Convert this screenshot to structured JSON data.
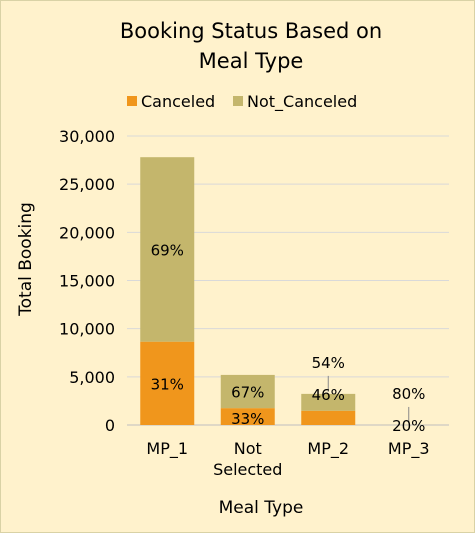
{
  "chart_data": {
    "type": "bar",
    "stacked": true,
    "title": "Booking Status Based on Meal Type",
    "title_lines": [
      "Booking Status Based on",
      "Meal Type"
    ],
    "xlabel": "Meal Type",
    "ylabel": "Total Booking",
    "categories": [
      "MP_1",
      "Not Selected",
      "MP_2",
      "MP_3"
    ],
    "category_lines": [
      [
        "MP_1"
      ],
      [
        "Not",
        "Selected"
      ],
      [
        "MP_2"
      ],
      [
        "MP_3"
      ]
    ],
    "series": [
      {
        "name": "Canceled",
        "color": "#F0961C",
        "values": [
          8650,
          1750,
          1480,
          1
        ],
        "labels": [
          "31%",
          "33%",
          "46%",
          "20%"
        ]
      },
      {
        "name": "Not_Canceled",
        "color": "#C4B66C",
        "values": [
          19150,
          3450,
          1750,
          4
        ],
        "labels": [
          "69%",
          "67%",
          "54%",
          "80%"
        ]
      }
    ],
    "ylim": [
      0,
      30000
    ],
    "yticks": [
      0,
      5000,
      10000,
      15000,
      20000,
      25000,
      30000
    ],
    "ytick_labels": [
      "0",
      "5,000",
      "10,000",
      "15,000",
      "20,000",
      "25,000",
      "30,000"
    ],
    "grid": true,
    "legend_position": "top"
  }
}
